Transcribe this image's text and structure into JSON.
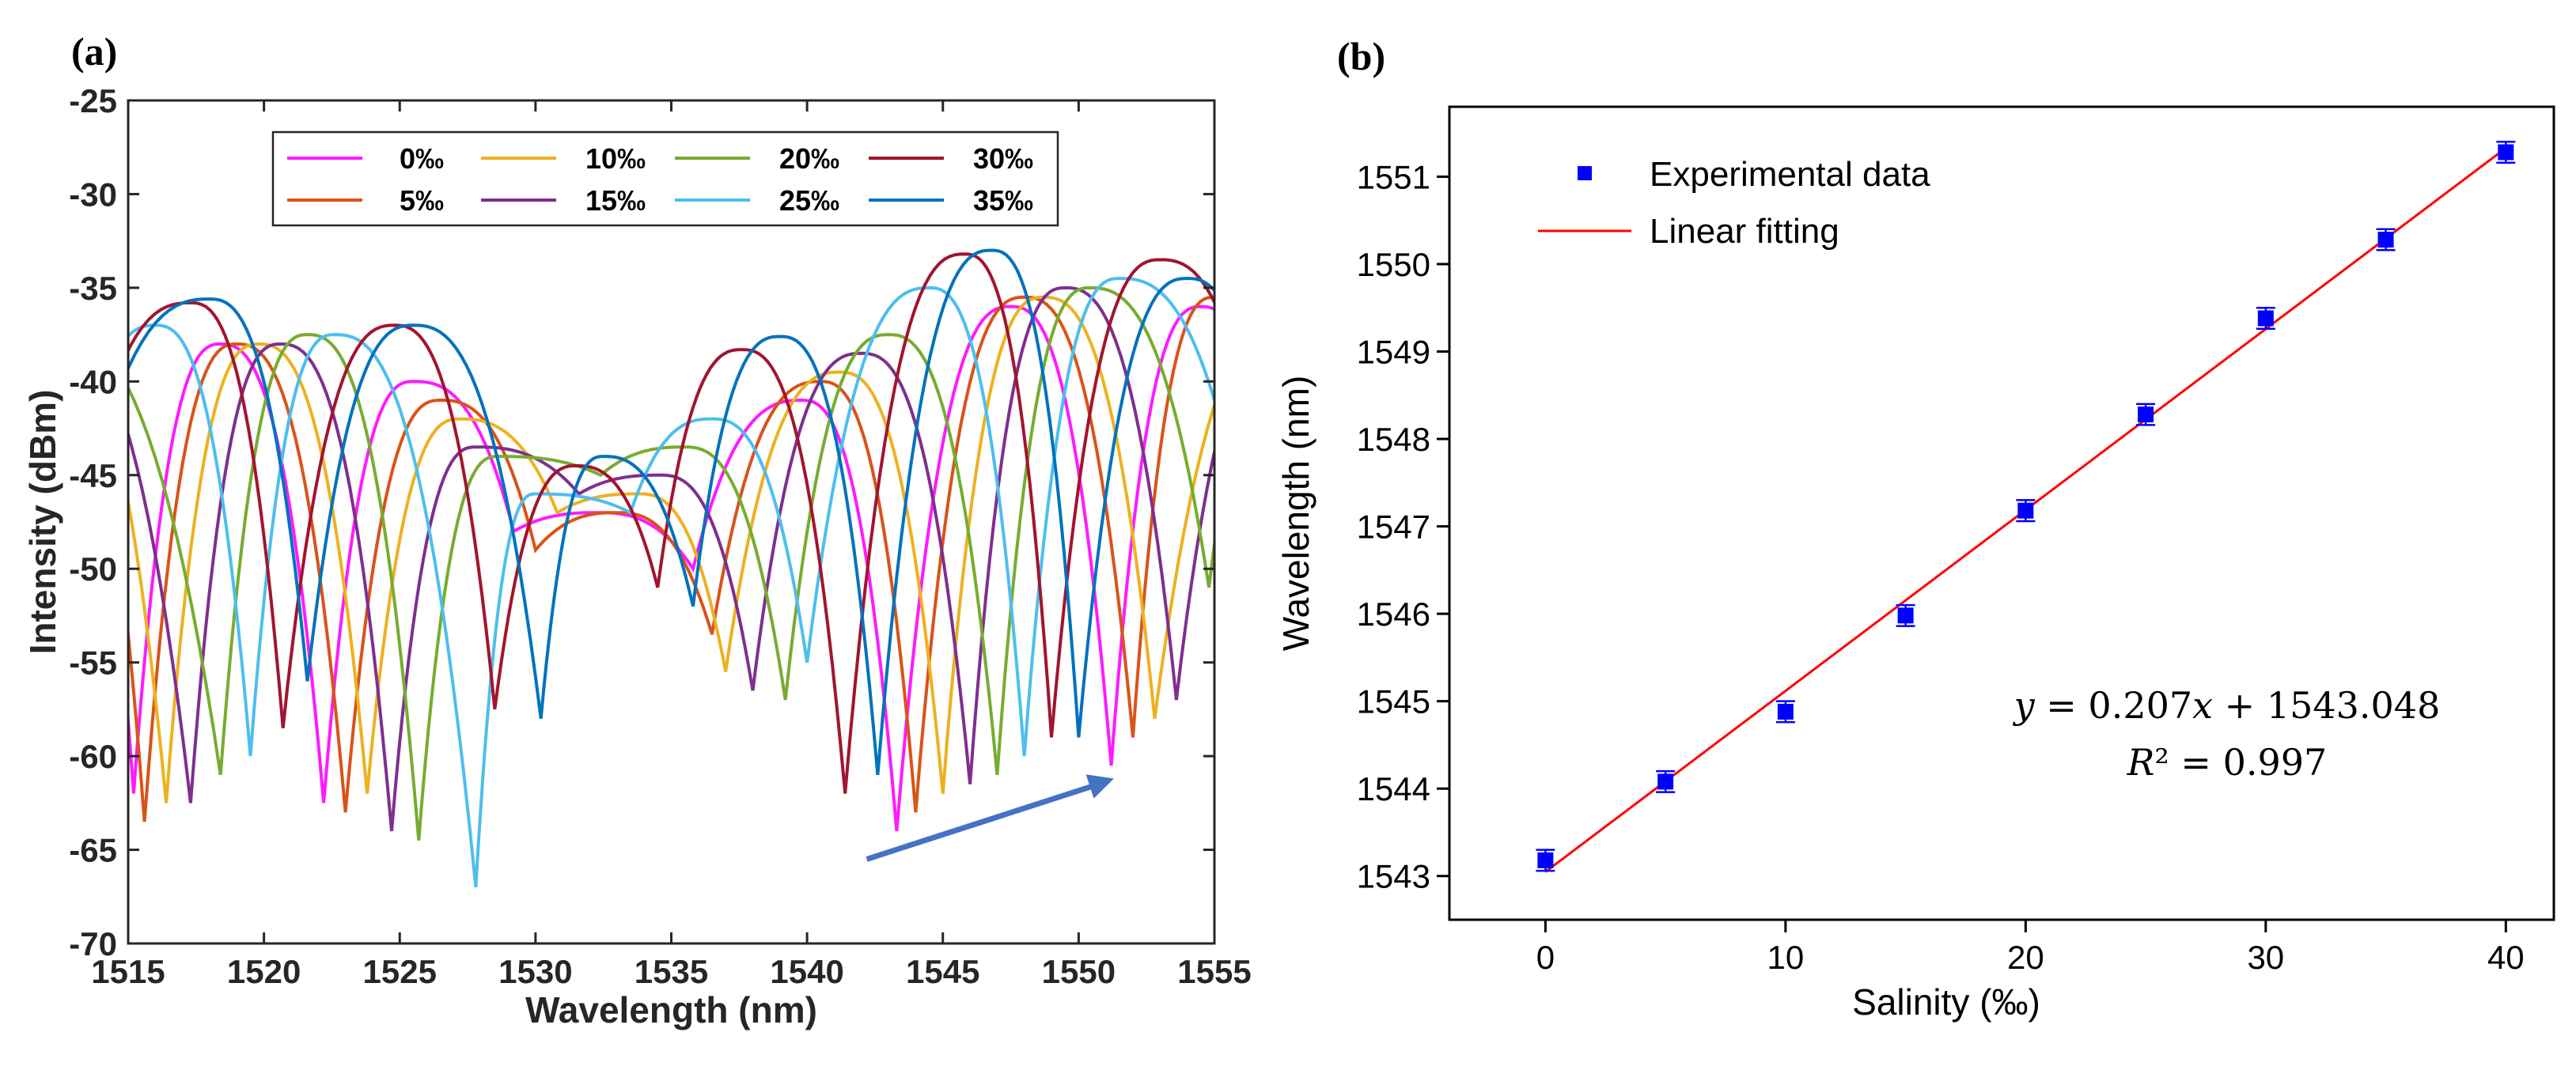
{
  "chart_data": [
    {
      "panel": "(a)",
      "type": "line",
      "xlabel": "Wavelength (nm)",
      "ylabel": "Intensity (dBm)",
      "xlim": [
        1515,
        1555
      ],
      "ylim": [
        -70,
        -25
      ],
      "xticks": [
        1515,
        1520,
        1525,
        1530,
        1535,
        1540,
        1545,
        1550,
        1555
      ],
      "yticks": [
        -25,
        -30,
        -35,
        -40,
        -45,
        -50,
        -55,
        -60,
        -65,
        -70
      ],
      "legend": "top-center, 2 rows x 4 columns, boxed",
      "annotation": "blue arrow pointing right, indicating red shift of spectrum with increasing salinity",
      "series": [
        {
          "name": "0‰",
          "color": "#ff1aff",
          "dips": [
            [
              1515.2,
              -62
            ],
            [
              1522.2,
              -62.5
            ],
            [
              1529.2,
              -48
            ],
            [
              1535.8,
              -50
            ],
            [
              1543.3,
              -64
            ],
            [
              1551.2,
              -60.5
            ]
          ],
          "peaks": [
            [
              1518.4,
              -38
            ],
            [
              1525.5,
              -40
            ],
            [
              1532.3,
              -47
            ],
            [
              1539.8,
              -41
            ],
            [
              1547.5,
              -36
            ],
            [
              1554.5,
              -36
            ]
          ]
        },
        {
          "name": "5‰",
          "color": "#d95319",
          "dips": [
            [
              1515.6,
              -63.5
            ],
            [
              1523.0,
              -63
            ],
            [
              1530.0,
              -49
            ],
            [
              1536.5,
              -53.5
            ],
            [
              1544.0,
              -63
            ],
            [
              1552.0,
              -59
            ]
          ],
          "peaks": [
            [
              1519.0,
              -38
            ],
            [
              1526.5,
              -41
            ],
            [
              1533.0,
              -47
            ],
            [
              1540.5,
              -40
            ],
            [
              1548.0,
              -35.5
            ],
            [
              1555.0,
              -35.5
            ]
          ]
        },
        {
          "name": "10‰",
          "color": "#edb120",
          "dips": [
            [
              1516.4,
              -62.5
            ],
            [
              1523.8,
              -62
            ],
            [
              1530.8,
              -47
            ],
            [
              1537.0,
              -55.5
            ],
            [
              1545.0,
              -62
            ],
            [
              1552.8,
              -58
            ]
          ],
          "peaks": [
            [
              1519.8,
              -38
            ],
            [
              1527.2,
              -42
            ],
            [
              1533.8,
              -46
            ],
            [
              1541.2,
              -39.5
            ],
            [
              1548.7,
              -35.5
            ]
          ]
        },
        {
          "name": "15‰",
          "color": "#7e2f8e",
          "dips": [
            [
              1517.3,
              -62.5
            ],
            [
              1524.7,
              -64
            ],
            [
              1531.6,
              -46
            ],
            [
              1538.0,
              -56.5
            ],
            [
              1546.0,
              -61.5
            ],
            [
              1553.6,
              -57
            ]
          ],
          "peaks": [
            [
              1520.6,
              -38
            ],
            [
              1527.8,
              -43.5
            ],
            [
              1534.6,
              -45
            ],
            [
              1542.0,
              -38.5
            ],
            [
              1549.5,
              -35
            ]
          ]
        },
        {
          "name": "20‰",
          "color": "#77ac30",
          "dips": [
            [
              1518.4,
              -61
            ],
            [
              1525.7,
              -64.5
            ],
            [
              1532.4,
              -45
            ],
            [
              1539.2,
              -57
            ],
            [
              1547.0,
              -61
            ],
            [
              1554.8,
              -51
            ]
          ],
          "peaks": [
            [
              1521.6,
              -37.5
            ],
            [
              1528.6,
              -44
            ],
            [
              1535.5,
              -43.5
            ],
            [
              1543.0,
              -37.5
            ],
            [
              1550.4,
              -35
            ]
          ]
        },
        {
          "name": "25‰",
          "color": "#4dbeee",
          "dips": [
            [
              1519.5,
              -60
            ],
            [
              1527.8,
              -67
            ],
            [
              1533.5,
              -47
            ],
            [
              1540.0,
              -55
            ],
            [
              1548.0,
              -60
            ],
            [
              1555.0,
              -41
            ]
          ],
          "peaks": [
            [
              1516.0,
              -37
            ],
            [
              1522.6,
              -37.5
            ],
            [
              1530.0,
              -46
            ],
            [
              1536.5,
              -42
            ],
            [
              1544.5,
              -35
            ],
            [
              1551.5,
              -34.5
            ]
          ]
        },
        {
          "name": "30‰",
          "color": "#a2142f",
          "dips": [
            [
              1520.7,
              -58.5
            ],
            [
              1528.5,
              -57.5
            ],
            [
              1534.5,
              -51
            ],
            [
              1541.4,
              -62
            ],
            [
              1549.0,
              -59
            ]
          ],
          "peaks": [
            [
              1517.3,
              -35.8
            ],
            [
              1524.8,
              -37
            ],
            [
              1531.5,
              -44.5
            ],
            [
              1537.6,
              -38.3
            ],
            [
              1545.8,
              -33.2
            ],
            [
              1553.0,
              -33.5
            ]
          ]
        },
        {
          "name": "35‰",
          "color": "#0072bd",
          "dips": [
            [
              1521.6,
              -56
            ],
            [
              1530.2,
              -58
            ],
            [
              1535.8,
              -52
            ],
            [
              1542.6,
              -61
            ],
            [
              1550.0,
              -59
            ]
          ],
          "peaks": [
            [
              1518.0,
              -35.6
            ],
            [
              1525.5,
              -37
            ],
            [
              1532.5,
              -44
            ],
            [
              1539.0,
              -37.6
            ],
            [
              1546.8,
              -33
            ],
            [
              1554.0,
              -34.5
            ]
          ]
        }
      ]
    },
    {
      "panel": "(b)",
      "type": "scatter",
      "xlabel": "Salinity (‰)",
      "ylabel": "Wavelength (nm)",
      "xlim": [
        -4,
        42
      ],
      "ylim": [
        1542.5,
        1551.8
      ],
      "xticks": [
        0,
        10,
        20,
        30,
        40
      ],
      "yticks": [
        1543,
        1544,
        1545,
        1546,
        1547,
        1548,
        1549,
        1550,
        1551
      ],
      "legend": "top-left",
      "series": [
        {
          "name": "Experimental data",
          "color": "#0000ff",
          "marker": "square",
          "x": [
            0,
            5,
            10,
            15,
            20,
            25,
            30,
            35,
            40
          ],
          "y": [
            1543.18,
            1544.08,
            1544.88,
            1545.98,
            1547.18,
            1548.28,
            1549.38,
            1550.28,
            1551.28
          ],
          "error": 0.12
        },
        {
          "name": "Linear fitting",
          "color": "#ff0000",
          "type": "line",
          "slope": 0.207,
          "intercept": 1543.048,
          "x": [
            0,
            40
          ]
        }
      ],
      "annotation": {
        "equation": "y = 0.207x + 1543.048",
        "r2": "R² = 0.997"
      }
    }
  ],
  "labels": {
    "panel_a": "(a)",
    "panel_b": "(b)",
    "eq_line1": "𝑦 = 0.207𝑥 + 1543.048",
    "eq_line2": "𝑅² = 0.997"
  }
}
